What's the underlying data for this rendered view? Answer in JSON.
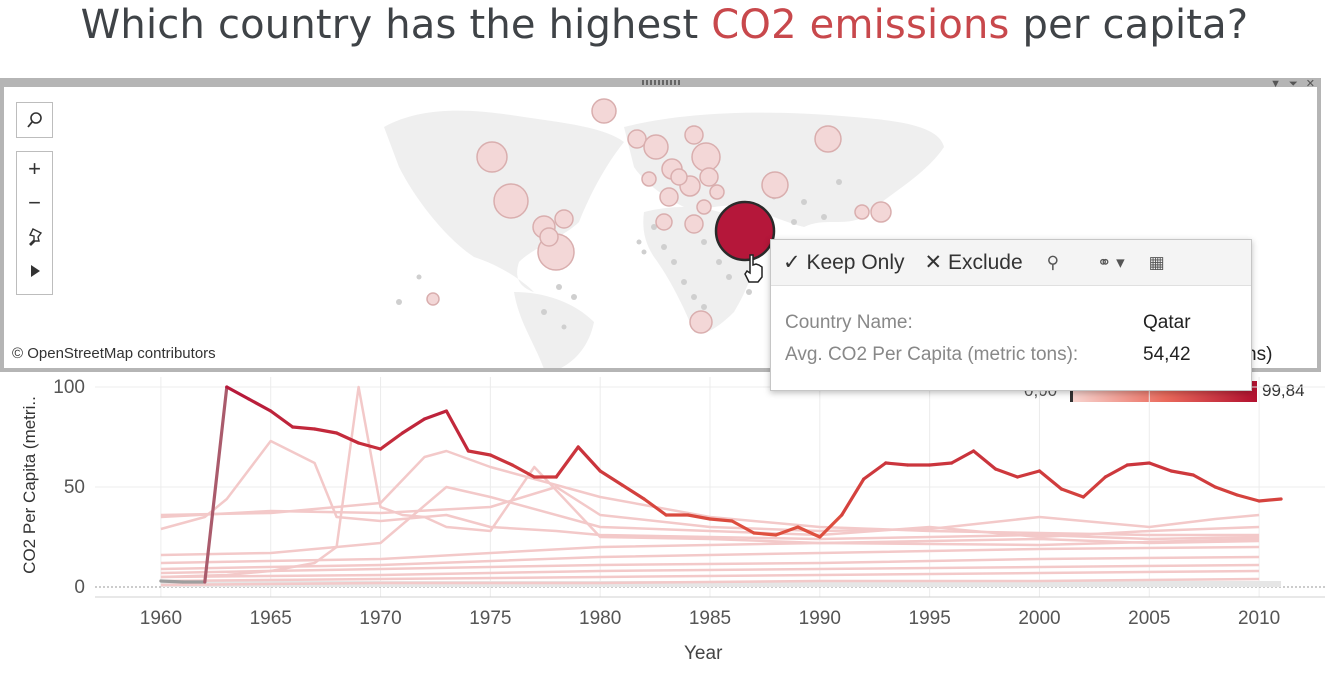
{
  "title": {
    "prefix": "Which country has the highest ",
    "highlight": "CO2 emissions",
    "suffix": " per capita?",
    "highlight_color": "#c8484c"
  },
  "map": {
    "attribution": "© OpenStreetMap contributors",
    "tools": {
      "search": "search-icon",
      "zoom_in": "+",
      "zoom_out": "−",
      "pin": "pin-icon",
      "play": "play-icon"
    }
  },
  "tooltip": {
    "keep_only": "Keep Only",
    "exclude": "Exclude",
    "rows": [
      {
        "label": "Country Name:",
        "value": "Qatar"
      },
      {
        "label": "Avg. CO2 Per Capita (metric tons):",
        "value": "54,42"
      }
    ]
  },
  "legend": {
    "title_fragment": "ns)",
    "min": "0,00",
    "max": "99,84"
  },
  "chart_data": {
    "type": "line",
    "xlabel": "Year",
    "ylabel": "CO2 Per Capita (metri..",
    "x_ticks": [
      1960,
      1965,
      1970,
      1975,
      1980,
      1985,
      1990,
      1995,
      2000,
      2005,
      2010
    ],
    "y_ticks": [
      0,
      50,
      100
    ],
    "xlim": [
      1957,
      2013
    ],
    "ylim": [
      -5,
      105
    ],
    "highlight_series": {
      "name": "Qatar",
      "x": [
        1960,
        1961,
        1962,
        1963,
        1964,
        1965,
        1966,
        1967,
        1968,
        1969,
        1970,
        1971,
        1972,
        1973,
        1974,
        1975,
        1976,
        1977,
        1978,
        1979,
        1980,
        1981,
        1982,
        1983,
        1984,
        1985,
        1986,
        1987,
        1988,
        1989,
        1990,
        1991,
        1992,
        1993,
        1994,
        1995,
        1996,
        1997,
        1998,
        1999,
        2000,
        2001,
        2002,
        2003,
        2004,
        2005,
        2006,
        2007,
        2008,
        2009,
        2010,
        2011
      ],
      "y": [
        3,
        2.5,
        2.5,
        100,
        94,
        88,
        80,
        79,
        77,
        72,
        69,
        77,
        84,
        88,
        68,
        66,
        61,
        55,
        55,
        70,
        58,
        51,
        44,
        36,
        36,
        34,
        33,
        27,
        26,
        30,
        25,
        36,
        54,
        62,
        61,
        61,
        62,
        68,
        59,
        55,
        58,
        49,
        45,
        55,
        61,
        62,
        58,
        56,
        50,
        46,
        43,
        44
      ]
    },
    "background_series": [
      {
        "x": [
          1960,
          1963,
          1965,
          1967,
          1968,
          1969,
          1970,
          1971,
          1972,
          1973,
          1975,
          1978,
          1980,
          1985,
          1990,
          1995,
          2000,
          2005,
          2010
        ],
        "y": [
          5,
          6,
          8,
          12,
          20,
          100,
          40,
          36,
          35,
          36,
          30,
          28,
          26,
          25,
          24,
          25,
          26,
          24,
          25
        ]
      },
      {
        "x": [
          1960,
          1962,
          1963,
          1965,
          1967,
          1968,
          1970,
          1972,
          1973,
          1975,
          1977,
          1980,
          1985,
          1990,
          1995,
          2000,
          2005,
          2010
        ],
        "y": [
          29,
          35,
          44,
          73,
          62,
          35,
          33,
          35,
          30,
          28,
          60,
          25,
          24,
          22,
          23,
          24,
          22,
          23
        ]
      },
      {
        "x": [
          1960,
          1965,
          1970,
          1972,
          1973,
          1975,
          1980,
          1985,
          1990,
          1995,
          2000,
          2005,
          2010
        ],
        "y": [
          36,
          37,
          42,
          65,
          68,
          60,
          45,
          35,
          30,
          28,
          27,
          26,
          26
        ]
      },
      {
        "x": [
          1960,
          1965,
          1970,
          1975,
          1978,
          1980,
          1985,
          1990,
          1995,
          2000,
          2005,
          2008,
          2010
        ],
        "y": [
          35,
          38,
          37,
          40,
          50,
          36,
          30,
          28,
          29,
          35,
          30,
          34,
          36
        ]
      },
      {
        "x": [
          1960,
          1965,
          1970,
          1973,
          1975,
          1980,
          1985,
          1990,
          1995,
          2000,
          2005,
          2010
        ],
        "y": [
          16,
          17,
          22,
          50,
          45,
          30,
          28,
          26,
          30,
          25,
          28,
          30
        ]
      },
      {
        "x": [
          1960,
          1970,
          1980,
          1990,
          2000,
          2010
        ],
        "y": [
          12,
          14,
          20,
          22,
          21,
          24
        ]
      },
      {
        "x": [
          1960,
          1970,
          1980,
          1990,
          2000,
          2010
        ],
        "y": [
          9,
          11,
          15,
          17,
          19,
          20
        ]
      },
      {
        "x": [
          1960,
          1970,
          1980,
          1990,
          2000,
          2010
        ],
        "y": [
          7,
          9,
          11,
          12,
          14,
          15
        ]
      },
      {
        "x": [
          1960,
          1970,
          1980,
          1990,
          2000,
          2010
        ],
        "y": [
          5,
          6,
          8,
          9,
          10,
          11
        ]
      },
      {
        "x": [
          1960,
          1970,
          1980,
          1990,
          2000,
          2010
        ],
        "y": [
          3,
          4,
          5,
          6,
          7,
          8
        ]
      },
      {
        "x": [
          1960,
          1970,
          1980,
          1990,
          2000,
          2010
        ],
        "y": [
          1,
          2,
          2,
          3,
          3,
          4
        ]
      }
    ],
    "highlight_color_start": "#9e9e9e",
    "highlight_color_peak": "#b5173a",
    "highlight_color_end": "#e0523f",
    "background_color": "#f3c9c9"
  }
}
